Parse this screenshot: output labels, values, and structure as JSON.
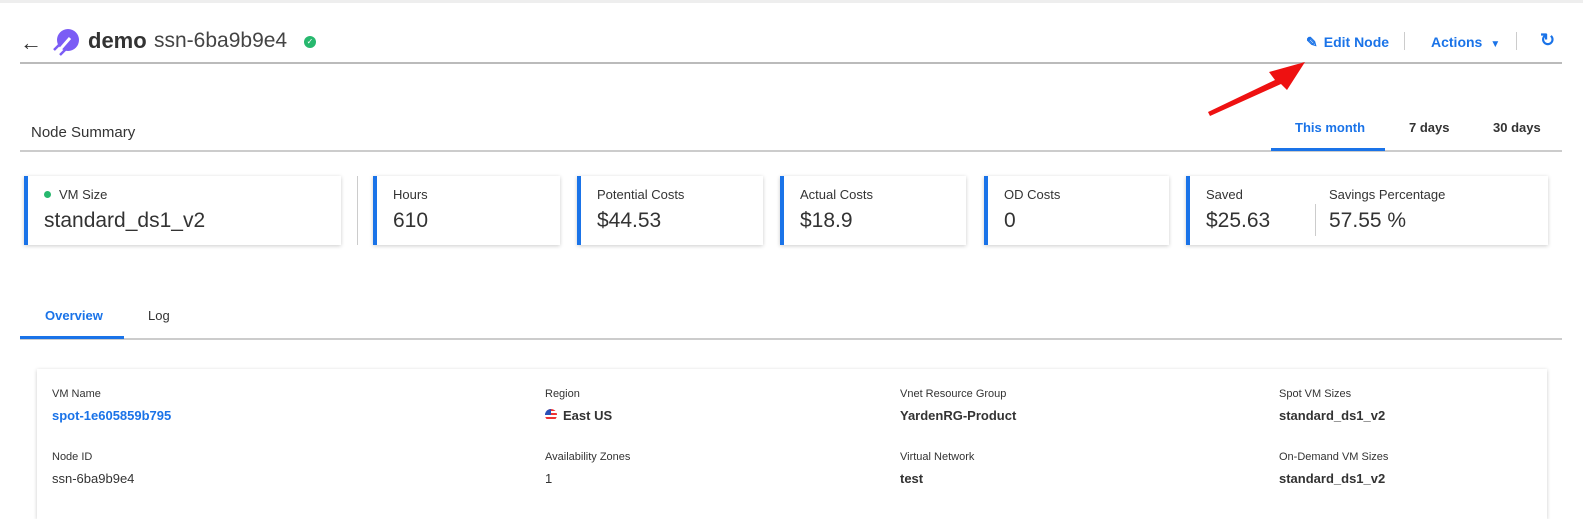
{
  "header": {
    "title": "demo",
    "subtitle": "ssn-6ba9b9e4",
    "edit_label": "Edit Node",
    "actions_label": "Actions",
    "status": "healthy"
  },
  "summary": {
    "title": "Node Summary",
    "ranges": [
      "This month",
      "7 days",
      "30 days"
    ],
    "active_range": "This month"
  },
  "cards": [
    {
      "label": "VM Size",
      "value": "standard_ds1_v2"
    },
    {
      "label": "Hours",
      "value": "610"
    },
    {
      "label": "Potential Costs",
      "value": "$44.53"
    },
    {
      "label": "Actual Costs",
      "value": "$18.9"
    },
    {
      "label": "OD Costs",
      "value": "0"
    },
    {
      "label": "Saved",
      "value": "$25.63"
    },
    {
      "label": "Savings Percentage",
      "value": "57.55 %"
    }
  ],
  "tabs": [
    "Overview",
    "Log"
  ],
  "details": [
    {
      "label": "VM Name",
      "value": "spot-1e605859b795"
    },
    {
      "label": "Region",
      "value": "East US"
    },
    {
      "label": "Vnet Resource Group",
      "value": "YardenRG-Product"
    },
    {
      "label": "Spot VM Sizes",
      "value": "standard_ds1_v2"
    },
    {
      "label": "Node ID",
      "value": "ssn-6ba9b9e4"
    },
    {
      "label": "Availability Zones",
      "value": "1"
    },
    {
      "label": "Virtual Network",
      "value": "test"
    },
    {
      "label": "On-Demand VM Sizes",
      "value": "standard_ds1_v2"
    }
  ],
  "colors": {
    "accent": "#1a73e8",
    "success": "#27b86e",
    "annotation": "#ee1111"
  }
}
